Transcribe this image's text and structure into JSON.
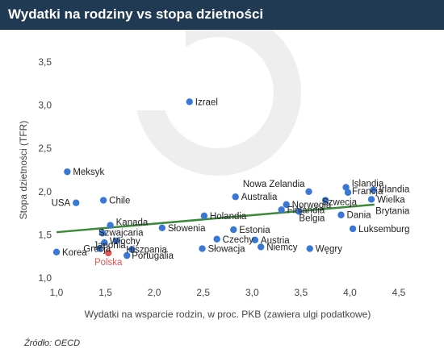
{
  "header": {
    "title": "Wydatki na rodziny vs stopa dzietności"
  },
  "footer": {
    "source": "Źródło: OECD"
  },
  "colors": {
    "header_bg": "#1f3a52",
    "point": "#3a78d8",
    "highlight": "#e05555",
    "trendline": "#3a8a3a",
    "watermark": "#eeeeee"
  },
  "chart_data": {
    "type": "scatter",
    "title": "Wydatki na rodziny vs stopa dzietności",
    "xlabel": "Wydatki na wsparcie rodzin, w proc. PKB (zawiera ulgi podatkowe)",
    "ylabel": "Stopa dzietności (TFR)",
    "xlim": [
      1.0,
      4.5
    ],
    "ylim": [
      1.0,
      3.5
    ],
    "xticks": [
      "1,0",
      "1,5",
      "2,0",
      "2,5",
      "3,0",
      "3,5",
      "4,0",
      "4,5"
    ],
    "yticks": [
      "1,0",
      "1,5",
      "2,0",
      "2,5",
      "3,0",
      "3,5"
    ],
    "grid": false,
    "trendline": {
      "x": [
        1.0,
        4.25
      ],
      "y": [
        1.53,
        1.85
      ]
    },
    "highlight": "Polska",
    "points": [
      {
        "label": "Izrael",
        "x": 2.36,
        "y": 3.04
      },
      {
        "label": "Meksyk",
        "x": 1.11,
        "y": 2.23
      },
      {
        "label": "USA",
        "x": 1.2,
        "y": 1.87
      },
      {
        "label": "Chile",
        "x": 1.48,
        "y": 1.9
      },
      {
        "label": "Korea",
        "x": 1.0,
        "y": 1.3
      },
      {
        "label": "Polska",
        "x": 1.53,
        "y": 1.29
      },
      {
        "label": "Kanada",
        "x": 1.55,
        "y": 1.61
      },
      {
        "label": "Szwajcaria",
        "x": 1.47,
        "y": 1.52
      },
      {
        "label": "Włochy",
        "x": 1.61,
        "y": 1.43
      },
      {
        "label": "Japonia",
        "x": 1.49,
        "y": 1.41
      },
      {
        "label": "Grecja",
        "x": 1.44,
        "y": 1.34
      },
      {
        "label": "Hiszpania",
        "x": 1.77,
        "y": 1.33
      },
      {
        "label": "Portugalia",
        "x": 1.72,
        "y": 1.26
      },
      {
        "label": "Słowenia",
        "x": 2.08,
        "y": 1.58
      },
      {
        "label": "Holandia",
        "x": 2.51,
        "y": 1.72
      },
      {
        "label": "Słowacja",
        "x": 2.49,
        "y": 1.34
      },
      {
        "label": "Czechy",
        "x": 2.64,
        "y": 1.45
      },
      {
        "label": "Estonia",
        "x": 2.81,
        "y": 1.56
      },
      {
        "label": "Australia",
        "x": 2.83,
        "y": 1.94
      },
      {
        "label": "Austria",
        "x": 3.03,
        "y": 1.44
      },
      {
        "label": "Niemcy",
        "x": 3.09,
        "y": 1.36
      },
      {
        "label": "Nowa Zelandia",
        "x": 3.58,
        "y": 2.0
      },
      {
        "label": "Norwegia",
        "x": 3.35,
        "y": 1.85
      },
      {
        "label": "Finlandia",
        "x": 3.3,
        "y": 1.79
      },
      {
        "label": "Belgia",
        "x": 3.48,
        "y": 1.77
      },
      {
        "label": "Szwecja",
        "x": 3.75,
        "y": 1.9
      },
      {
        "label": "Dania",
        "x": 3.91,
        "y": 1.73
      },
      {
        "label": "Węgry",
        "x": 3.59,
        "y": 1.34
      },
      {
        "label": "Islandia",
        "x": 3.96,
        "y": 2.05
      },
      {
        "label": "Francja",
        "x": 3.98,
        "y": 1.99
      },
      {
        "label": "Irlandia",
        "x": 4.24,
        "y": 2.02
      },
      {
        "label": "Wielka Brytania",
        "x": 4.22,
        "y": 1.91
      },
      {
        "label": "Luksemburg",
        "x": 4.03,
        "y": 1.57
      }
    ]
  }
}
